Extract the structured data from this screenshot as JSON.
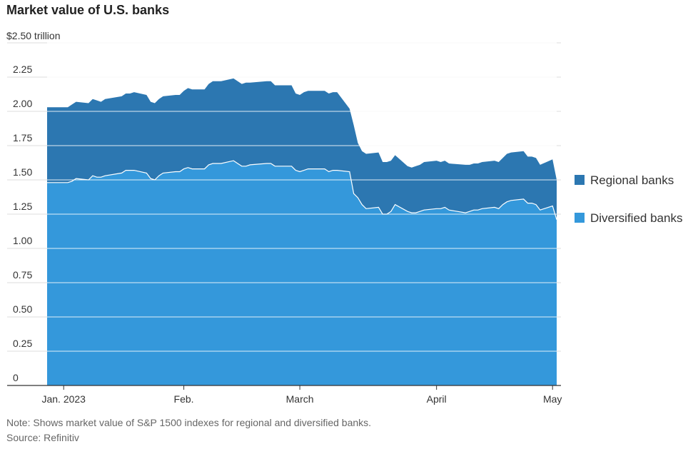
{
  "chart_data": {
    "type": "area",
    "title": "Market value of U.S. banks",
    "unit": "$2.50 trillion",
    "ylim": [
      0,
      2.5
    ],
    "y_ticks": [
      0,
      0.25,
      0.5,
      0.75,
      1.0,
      1.25,
      1.5,
      1.75,
      2.0,
      2.25,
      2.5
    ],
    "y_tick_labels": [
      "0",
      "0.25",
      "0.50",
      "0.75",
      "1.00",
      "1.25",
      "1.50",
      "1.75",
      "2.00",
      "2.25",
      ""
    ],
    "x_ticks": [
      {
        "label": "Jan. 2023",
        "date": "2023-01-03"
      },
      {
        "label": "Feb.",
        "date": "2023-02-01"
      },
      {
        "label": "March",
        "date": "2023-03-01"
      },
      {
        "label": "April",
        "date": "2023-04-03"
      },
      {
        "label": "May",
        "date": "2023-05-01"
      }
    ],
    "xlim": [
      "2022-12-30",
      "2023-05-03"
    ],
    "grid": true,
    "legend_position": "right",
    "stacked": true,
    "x": [
      "2022-12-30",
      "2023-01-03",
      "2023-01-04",
      "2023-01-05",
      "2023-01-06",
      "2023-01-09",
      "2023-01-10",
      "2023-01-11",
      "2023-01-12",
      "2023-01-13",
      "2023-01-17",
      "2023-01-18",
      "2023-01-19",
      "2023-01-20",
      "2023-01-23",
      "2023-01-24",
      "2023-01-25",
      "2023-01-26",
      "2023-01-27",
      "2023-01-30",
      "2023-01-31",
      "2023-02-01",
      "2023-02-02",
      "2023-02-03",
      "2023-02-06",
      "2023-02-07",
      "2023-02-08",
      "2023-02-09",
      "2023-02-10",
      "2023-02-13",
      "2023-02-14",
      "2023-02-15",
      "2023-02-16",
      "2023-02-17",
      "2023-02-21",
      "2023-02-22",
      "2023-02-23",
      "2023-02-24",
      "2023-02-27",
      "2023-02-28",
      "2023-03-01",
      "2023-03-02",
      "2023-03-03",
      "2023-03-06",
      "2023-03-07",
      "2023-03-08",
      "2023-03-09",
      "2023-03-10",
      "2023-03-13",
      "2023-03-14",
      "2023-03-15",
      "2023-03-16",
      "2023-03-17",
      "2023-03-20",
      "2023-03-21",
      "2023-03-22",
      "2023-03-23",
      "2023-03-24",
      "2023-03-27",
      "2023-03-28",
      "2023-03-29",
      "2023-03-30",
      "2023-03-31",
      "2023-04-03",
      "2023-04-04",
      "2023-04-05",
      "2023-04-06",
      "2023-04-10",
      "2023-04-11",
      "2023-04-12",
      "2023-04-13",
      "2023-04-14",
      "2023-04-17",
      "2023-04-18",
      "2023-04-19",
      "2023-04-20",
      "2023-04-21",
      "2023-04-24",
      "2023-04-25",
      "2023-04-26",
      "2023-04-27",
      "2023-04-28",
      "2023-05-01",
      "2023-05-02"
    ],
    "series": [
      {
        "name": "Diversified banks",
        "color": "#3498db",
        "values": [
          1.48,
          1.48,
          1.48,
          1.49,
          1.51,
          1.5,
          1.53,
          1.52,
          1.52,
          1.53,
          1.55,
          1.57,
          1.57,
          1.57,
          1.55,
          1.51,
          1.5,
          1.53,
          1.55,
          1.56,
          1.56,
          1.58,
          1.59,
          1.58,
          1.58,
          1.61,
          1.62,
          1.62,
          1.62,
          1.64,
          1.62,
          1.6,
          1.6,
          1.61,
          1.62,
          1.62,
          1.6,
          1.6,
          1.6,
          1.57,
          1.56,
          1.57,
          1.58,
          1.58,
          1.58,
          1.56,
          1.57,
          1.57,
          1.56,
          1.4,
          1.37,
          1.32,
          1.29,
          1.3,
          1.25,
          1.25,
          1.27,
          1.32,
          1.27,
          1.26,
          1.26,
          1.27,
          1.28,
          1.29,
          1.29,
          1.3,
          1.28,
          1.26,
          1.27,
          1.28,
          1.28,
          1.29,
          1.3,
          1.29,
          1.32,
          1.34,
          1.35,
          1.36,
          1.33,
          1.33,
          1.32,
          1.28,
          1.31,
          1.21
        ]
      },
      {
        "name": "Regional banks",
        "color": "#2c77b1",
        "values": [
          0.55,
          0.55,
          0.55,
          0.56,
          0.56,
          0.56,
          0.56,
          0.56,
          0.55,
          0.56,
          0.56,
          0.56,
          0.56,
          0.57,
          0.57,
          0.56,
          0.56,
          0.56,
          0.56,
          0.56,
          0.56,
          0.57,
          0.58,
          0.58,
          0.58,
          0.59,
          0.6,
          0.6,
          0.6,
          0.6,
          0.6,
          0.6,
          0.61,
          0.6,
          0.6,
          0.6,
          0.59,
          0.59,
          0.59,
          0.56,
          0.56,
          0.57,
          0.57,
          0.57,
          0.57,
          0.57,
          0.57,
          0.57,
          0.46,
          0.5,
          0.4,
          0.39,
          0.4,
          0.4,
          0.38,
          0.38,
          0.37,
          0.36,
          0.33,
          0.33,
          0.34,
          0.34,
          0.35,
          0.35,
          0.34,
          0.34,
          0.34,
          0.35,
          0.34,
          0.34,
          0.34,
          0.34,
          0.34,
          0.34,
          0.34,
          0.35,
          0.35,
          0.35,
          0.34,
          0.34,
          0.34,
          0.33,
          0.34,
          0.29
        ]
      }
    ],
    "legend": [
      "Regional banks",
      "Diversified banks"
    ]
  },
  "note": "Note: Shows market value of S&P 1500 indexes for regional and diversified banks.",
  "source": "Source: Refinitiv"
}
